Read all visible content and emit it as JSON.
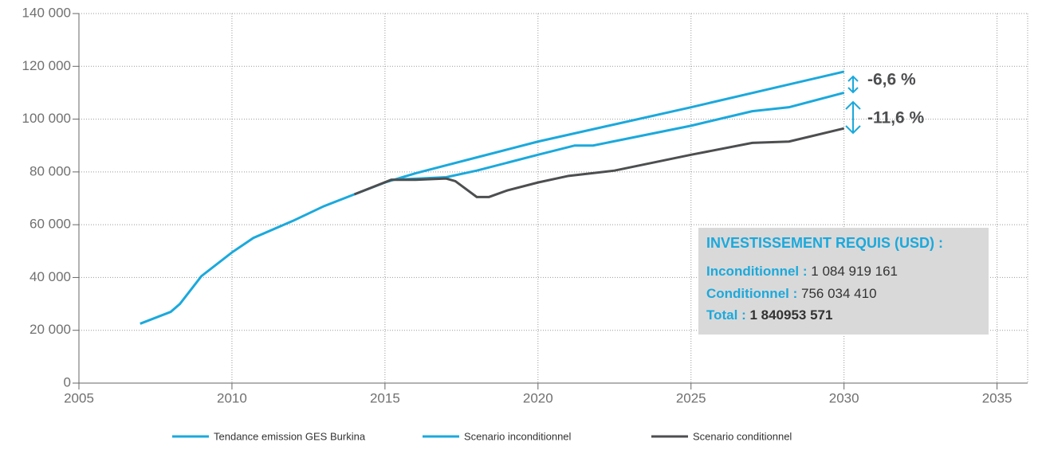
{
  "chart_data": {
    "type": "line",
    "xlim": [
      2005,
      2036
    ],
    "xticks": [
      2005,
      2010,
      2015,
      2020,
      2025,
      2030,
      2035
    ],
    "ylim": [
      0,
      140000
    ],
    "yticks": [
      0,
      {
        "value": 20000,
        "label": "20 000"
      },
      {
        "value": 40000,
        "label": "40 000"
      },
      {
        "value": 60000,
        "label": "60 000"
      },
      {
        "value": 80000,
        "label": "80 000"
      },
      {
        "value": 100000,
        "label": "100 000"
      },
      {
        "value": 120000,
        "label": "120 000"
      },
      {
        "value": 140000,
        "label": "140 000"
      }
    ],
    "grid": true,
    "legend": "bottom",
    "series": [
      {
        "name": "Tendance emission GES Burkina",
        "color": "#1ba9dc",
        "x": [
          2007,
          2008,
          2008.3,
          2009,
          2010,
          2010.7,
          2012,
          2013,
          2014,
          2015,
          2016,
          2017,
          2018,
          2019,
          2020,
          2025,
          2030
        ],
        "values": [
          22500,
          27000,
          30000,
          40500,
          49500,
          55000,
          61500,
          67000,
          71500,
          76000,
          79500,
          82500,
          85500,
          88500,
          91500,
          104500,
          118000
        ]
      },
      {
        "name": "Scenario inconditionnel",
        "color": "#1ba9dc",
        "x": [
          2015.2,
          2017,
          2018,
          2019,
          2020,
          2021.2,
          2021.8,
          2025,
          2027,
          2028.2,
          2030
        ],
        "values": [
          77000,
          78000,
          80500,
          83500,
          86500,
          90000,
          90000,
          97500,
          103000,
          104500,
          110000
        ]
      },
      {
        "name": "Scenario conditionnel",
        "color": "#4d4e50",
        "x": [
          2014,
          2015.2,
          2016,
          2017,
          2017.3,
          2018,
          2018.4,
          2019,
          2020,
          2021,
          2022.5,
          2025,
          2027,
          2028.2,
          2030
        ],
        "values": [
          71500,
          77000,
          77000,
          77500,
          76500,
          70500,
          70500,
          73000,
          76000,
          78500,
          80500,
          86500,
          91000,
          91500,
          96500
        ]
      }
    ],
    "annotations": [
      "-6,6 %",
      "-11,6 %"
    ],
    "box": {
      "title": "INVESTISSEMENT REQUIS (USD) :",
      "lines": [
        {
          "label": "Inconditionnel :",
          "value": "1 084 919 161"
        },
        {
          "label": "Conditionnel :",
          "value": "756 034 410"
        },
        {
          "label": "Total :",
          "value": "1 840953 571"
        }
      ]
    }
  }
}
